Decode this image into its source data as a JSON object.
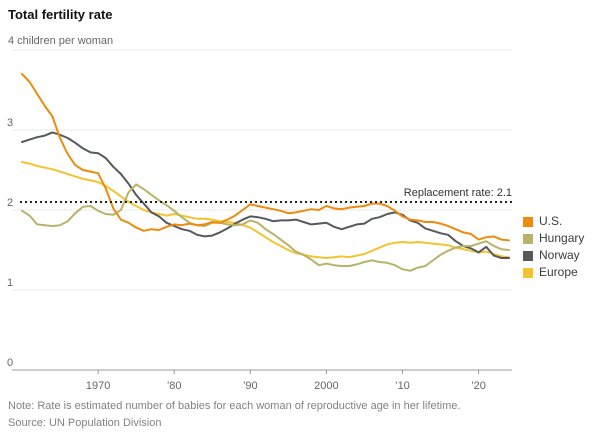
{
  "header": {
    "title": "Total fertility rate"
  },
  "chart_data": {
    "type": "line",
    "unit_label": "4 children per woman",
    "xlim": [
      1960,
      2024
    ],
    "ylim": [
      0,
      4
    ],
    "y_tick_labels": [
      0,
      1,
      2,
      3
    ],
    "grid_values": [
      1,
      2,
      3,
      4
    ],
    "x_ticks": [
      {
        "year": 1970,
        "label": "1970"
      },
      {
        "year": 1980,
        "label": "’80"
      },
      {
        "year": 1990,
        "label": "’90"
      },
      {
        "year": 2000,
        "label": "2000"
      },
      {
        "year": 2010,
        "label": "’10"
      },
      {
        "year": 2020,
        "label": "’20"
      }
    ],
    "annotation": {
      "label": "Replacement rate: 2.1",
      "value": 2.1
    },
    "legend_position": "right",
    "grid": "horizontal",
    "x": [
      1960,
      1961,
      1962,
      1963,
      1964,
      1965,
      1966,
      1967,
      1968,
      1969,
      1970,
      1971,
      1972,
      1973,
      1974,
      1975,
      1976,
      1977,
      1978,
      1979,
      1980,
      1981,
      1982,
      1983,
      1984,
      1985,
      1986,
      1987,
      1988,
      1989,
      1990,
      1991,
      1992,
      1993,
      1994,
      1995,
      1996,
      1997,
      1998,
      1999,
      2000,
      2001,
      2002,
      2003,
      2004,
      2005,
      2006,
      2007,
      2008,
      2009,
      2010,
      2011,
      2012,
      2013,
      2014,
      2015,
      2016,
      2017,
      2018,
      2019,
      2020,
      2021,
      2022,
      2023,
      2024
    ],
    "series": [
      {
        "name": "U.S.",
        "color": "#EE8A0D",
        "values": [
          3.7,
          3.6,
          3.45,
          3.3,
          3.17,
          2.9,
          2.7,
          2.56,
          2.5,
          2.48,
          2.46,
          2.27,
          2.02,
          1.88,
          1.84,
          1.78,
          1.74,
          1.76,
          1.75,
          1.79,
          1.82,
          1.81,
          1.83,
          1.81,
          1.82,
          1.85,
          1.84,
          1.88,
          1.93,
          2.0,
          2.07,
          2.05,
          2.03,
          2.01,
          1.99,
          1.96,
          1.97,
          1.99,
          2.01,
          2.0,
          2.05,
          2.02,
          2.01,
          2.03,
          2.04,
          2.05,
          2.08,
          2.08,
          2.05,
          1.99,
          1.92,
          1.88,
          1.87,
          1.85,
          1.85,
          1.83,
          1.8,
          1.76,
          1.72,
          1.7,
          1.63,
          1.66,
          1.67,
          1.63,
          1.62
        ]
      },
      {
        "name": "Hungary",
        "color": "#B8B368",
        "values": [
          1.99,
          1.93,
          1.82,
          1.81,
          1.8,
          1.81,
          1.86,
          1.96,
          2.04,
          2.05,
          1.99,
          1.95,
          1.94,
          2.0,
          2.22,
          2.32,
          2.26,
          2.19,
          2.12,
          2.06,
          1.99,
          1.91,
          1.84,
          1.81,
          1.8,
          1.84,
          1.84,
          1.82,
          1.81,
          1.82,
          1.87,
          1.84,
          1.76,
          1.7,
          1.63,
          1.56,
          1.48,
          1.44,
          1.38,
          1.31,
          1.33,
          1.31,
          1.3,
          1.3,
          1.32,
          1.35,
          1.37,
          1.35,
          1.34,
          1.31,
          1.26,
          1.24,
          1.28,
          1.3,
          1.37,
          1.44,
          1.49,
          1.53,
          1.55,
          1.55,
          1.58,
          1.61,
          1.55,
          1.51,
          1.5
        ]
      },
      {
        "name": "Norway",
        "color": "#55595C",
        "values": [
          2.85,
          2.88,
          2.91,
          2.93,
          2.97,
          2.94,
          2.9,
          2.84,
          2.77,
          2.72,
          2.71,
          2.65,
          2.54,
          2.45,
          2.33,
          2.19,
          2.08,
          1.97,
          1.92,
          1.84,
          1.8,
          1.76,
          1.74,
          1.69,
          1.67,
          1.68,
          1.72,
          1.77,
          1.83,
          1.88,
          1.92,
          1.91,
          1.89,
          1.86,
          1.87,
          1.87,
          1.88,
          1.85,
          1.82,
          1.83,
          1.84,
          1.79,
          1.76,
          1.79,
          1.82,
          1.83,
          1.89,
          1.91,
          1.95,
          1.97,
          1.94,
          1.87,
          1.84,
          1.77,
          1.74,
          1.71,
          1.69,
          1.61,
          1.55,
          1.52,
          1.47,
          1.54,
          1.43,
          1.4,
          1.4
        ]
      },
      {
        "name": "Europe",
        "color": "#F2C430",
        "values": [
          2.6,
          2.58,
          2.55,
          2.53,
          2.51,
          2.48,
          2.45,
          2.42,
          2.39,
          2.37,
          2.35,
          2.3,
          2.24,
          2.17,
          2.1,
          2.05,
          2.0,
          1.97,
          1.95,
          1.93,
          1.95,
          1.93,
          1.91,
          1.89,
          1.89,
          1.88,
          1.86,
          1.85,
          1.84,
          1.81,
          1.78,
          1.72,
          1.66,
          1.6,
          1.55,
          1.5,
          1.46,
          1.44,
          1.42,
          1.41,
          1.4,
          1.41,
          1.42,
          1.41,
          1.43,
          1.45,
          1.49,
          1.53,
          1.57,
          1.59,
          1.6,
          1.59,
          1.6,
          1.59,
          1.58,
          1.57,
          1.56,
          1.53,
          1.51,
          1.49,
          1.47,
          1.48,
          1.45,
          1.42,
          1.41
        ]
      }
    ],
    "colors": {
      "grid": "#EAEAEA",
      "baseline": "#9A9A9A",
      "tick": "#9A9A9A",
      "axis_text": "#666666",
      "annotation_line": "#222222",
      "annotation_text": "#333333"
    }
  },
  "footer": {
    "note": "Note: Rate is estimated number of babies for each woman of reproductive age in her lifetime.",
    "source": "Source: UN Population Division"
  }
}
